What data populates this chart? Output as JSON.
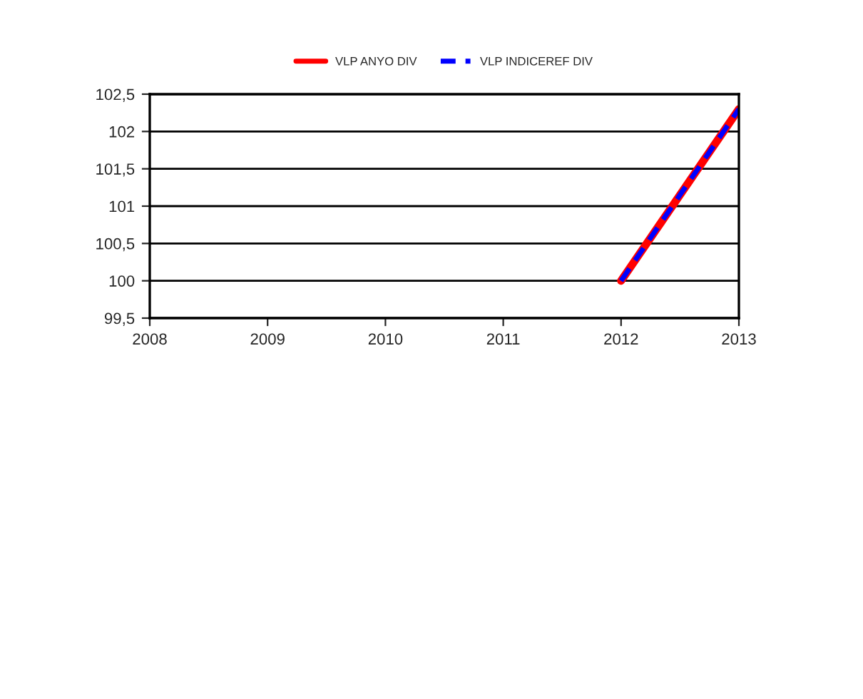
{
  "chart_data": {
    "type": "line",
    "x": [
      2012,
      2013
    ],
    "series": [
      {
        "name": "VLP ANYO DIV",
        "color": "#ff0000",
        "values": [
          100,
          102.3
        ],
        "line_style": "solid"
      },
      {
        "name": "VLP INDICEREF DIV",
        "color": "#0000ff",
        "values": [
          100,
          102.3
        ],
        "line_style": "dashed"
      }
    ],
    "xlim": [
      2008,
      2013
    ],
    "xticks": [
      2008,
      2009,
      2010,
      2011,
      2012,
      2013
    ],
    "ylim": [
      99.5,
      102.5
    ],
    "yticks": [
      {
        "value": 99.5,
        "label": "99,5"
      },
      100,
      {
        "value": 100.5,
        "label": "100,5"
      },
      101,
      {
        "value": 101.5,
        "label": "101,5"
      },
      102,
      {
        "value": 102.5,
        "label": "102,5"
      }
    ],
    "grid": "y",
    "legend": "top"
  }
}
